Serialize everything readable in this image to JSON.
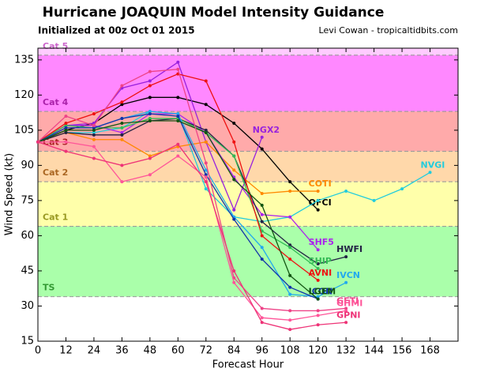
{
  "chart_data": {
    "type": "line",
    "title": "Hurricane JOAQUIN Model Intensity Guidance",
    "subtitle": "Initialized at 00z Oct 01 2015",
    "credit": "Levi Cowan - tropicaltidbits.com",
    "xlabel": "Forecast Hour",
    "ylabel": "Wind Speed (kt)",
    "xlim": [
      0,
      180
    ],
    "ylim": [
      15,
      140
    ],
    "xticks": [
      0,
      12,
      24,
      36,
      48,
      60,
      72,
      84,
      96,
      108,
      120,
      132,
      144,
      156,
      168
    ],
    "yticks": [
      15,
      30,
      45,
      60,
      75,
      90,
      105,
      120,
      135
    ],
    "bands": [
      {
        "label": "Cat 5",
        "from": 137,
        "to": 140,
        "color": "#ffccff",
        "text_color": "#cc66cc"
      },
      {
        "label": "Cat 4",
        "from": 113,
        "to": 137,
        "color": "#ff88ff",
        "text_color": "#aa22aa"
      },
      {
        "label": "Cat 3",
        "from": 96,
        "to": 113,
        "color": "#ffaaaa",
        "text_color": "#aa2222"
      },
      {
        "label": "Cat 2",
        "from": 83,
        "to": 96,
        "color": "#ffd8aa",
        "text_color": "#aa6622"
      },
      {
        "label": "Cat 1",
        "from": 64,
        "to": 83,
        "color": "#ffffaa",
        "text_color": "#999922"
      },
      {
        "label": "TS",
        "from": 34,
        "to": 64,
        "color": "#aaffaa",
        "text_color": "#339933"
      }
    ],
    "series": [
      {
        "name": "OFCI",
        "color": "#000000",
        "x": [
          0,
          12,
          24,
          36,
          48,
          60,
          72,
          84,
          96,
          108,
          120
        ],
        "values": [
          100,
          105,
          108,
          116,
          119,
          119,
          116,
          108,
          97,
          83,
          71
        ]
      },
      {
        "name": "NGX2",
        "color": "#9922dd",
        "x": [
          0,
          12,
          24,
          36,
          48,
          60,
          72,
          84,
          96
        ],
        "values": [
          100,
          107,
          108,
          123,
          126,
          134,
          100,
          71,
          102
        ]
      },
      {
        "name": "NVGI",
        "color": "#22ccdd",
        "x": [
          0,
          12,
          24,
          36,
          48,
          60,
          72,
          84,
          96,
          108,
          120,
          132,
          144,
          156,
          168
        ],
        "values": [
          100,
          104,
          104,
          106,
          113,
          112,
          80,
          68,
          66,
          68,
          75,
          79,
          75,
          80,
          87
        ]
      },
      {
        "name": "COTI",
        "color": "#ff8800",
        "x": [
          0,
          12,
          24,
          36,
          48,
          60,
          72,
          84,
          96,
          108,
          120
        ],
        "values": [
          100,
          104,
          101,
          101,
          94,
          98,
          100,
          88,
          78,
          79,
          79
        ]
      },
      {
        "name": "SHF5",
        "color": "#aa22ee",
        "x": [
          0,
          12,
          24,
          36,
          48,
          60,
          72,
          84,
          96,
          108,
          120
        ],
        "values": [
          100,
          107,
          107,
          104,
          112,
          112,
          104,
          85,
          69,
          68,
          54
        ]
      },
      {
        "name": "HWFI",
        "color": "#222244",
        "x": [
          0,
          12,
          24,
          36,
          48,
          60,
          72,
          84,
          96,
          108,
          120,
          132
        ],
        "values": [
          100,
          104,
          103,
          103,
          109,
          110,
          105,
          94,
          66,
          56,
          48,
          51
        ]
      },
      {
        "name": "SHIP",
        "color": "#33bb55",
        "x": [
          0,
          12,
          24,
          36,
          48,
          60,
          72,
          84,
          96,
          108,
          120
        ],
        "values": [
          100,
          107,
          106,
          106,
          110,
          110,
          104,
          94,
          62,
          55,
          46
        ]
      },
      {
        "name": "AVNI",
        "color": "#ee1111",
        "x": [
          0,
          12,
          24,
          36,
          48,
          60,
          72,
          84,
          96,
          108,
          120
        ],
        "values": [
          100,
          108,
          112,
          117,
          124,
          129,
          126,
          100,
          60,
          50,
          41
        ]
      },
      {
        "name": "IVCN",
        "color": "#22aaee",
        "x": [
          0,
          12,
          24,
          36,
          48,
          60,
          72,
          84,
          96,
          108,
          120,
          132
        ],
        "values": [
          100,
          106,
          106,
          110,
          113,
          112,
          88,
          68,
          55,
          35,
          34,
          40
        ]
      },
      {
        "name": "ICON",
        "color": "#1133aa",
        "x": [
          0,
          12,
          24,
          36,
          48,
          60,
          72,
          84,
          96,
          108,
          120
        ],
        "values": [
          100,
          106,
          106,
          110,
          112,
          111,
          86,
          67,
          50,
          38,
          33
        ]
      },
      {
        "name": "LGEM",
        "color": "#115511",
        "x": [
          0,
          12,
          24,
          36,
          48,
          60,
          72,
          84,
          96,
          108,
          120
        ],
        "values": [
          100,
          105,
          105,
          108,
          109,
          109,
          104,
          84,
          73,
          43,
          33
        ]
      },
      {
        "name": "GFTI",
        "color": "#ee4488",
        "x": [
          0,
          12,
          24,
          36,
          48,
          60,
          72,
          84,
          96,
          108,
          120,
          132
        ],
        "values": [
          100,
          111,
          107,
          124,
          130,
          131,
          91,
          42,
          29,
          28,
          28,
          29
        ]
      },
      {
        "name": "GHMI",
        "color": "#ff5599",
        "x": [
          0,
          12,
          24,
          36,
          48,
          60,
          72,
          84,
          96,
          108,
          120,
          132
        ],
        "values": [
          100,
          100,
          98,
          83,
          86,
          94,
          85,
          40,
          25,
          24,
          26,
          28
        ]
      },
      {
        "name": "GPNI",
        "color": "#ee3377",
        "x": [
          0,
          12,
          24,
          36,
          48,
          60,
          72,
          84,
          96,
          108,
          120,
          132
        ],
        "values": [
          100,
          96,
          93,
          90,
          93,
          99,
          83,
          45,
          23,
          20,
          22,
          23
        ]
      }
    ]
  }
}
